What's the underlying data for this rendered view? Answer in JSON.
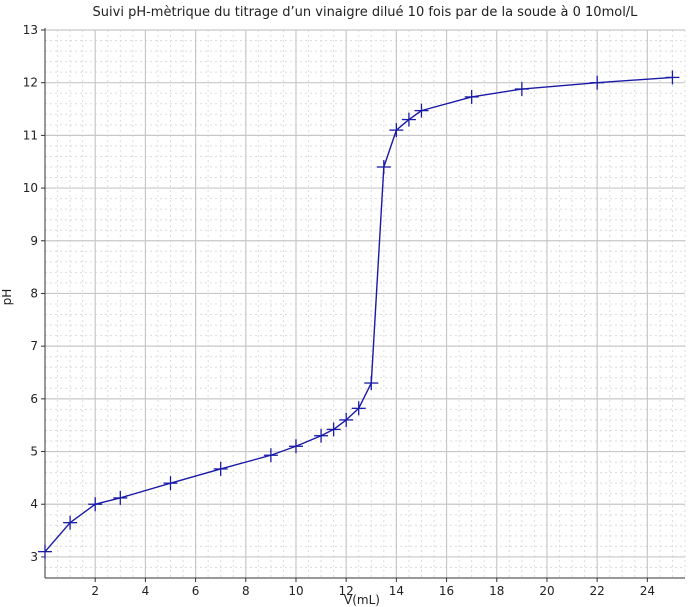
{
  "chart_data": {
    "type": "line",
    "title": "Suivi pH-mètrique du titrage d’un vinaigre dilué 10 fois par de la soude à 0 10mol/L",
    "xlabel": "V(mL)",
    "ylabel": "pH",
    "xlim": [
      0,
      25.5
    ],
    "ylim": [
      2.6,
      13
    ],
    "xticks": [
      2,
      4,
      6,
      8,
      10,
      12,
      14,
      16,
      18,
      20,
      22,
      24
    ],
    "yticks": [
      3,
      4,
      5,
      6,
      7,
      8,
      9,
      10,
      11,
      12,
      13
    ],
    "grid": true,
    "marker": "plus",
    "colors": {
      "line": "#1a1aa8",
      "grid_major": "#c8c8c8",
      "grid_minor": "#dcdcdc",
      "axis": "#333333"
    },
    "series": [
      {
        "x": [
          0,
          1,
          2,
          3,
          5,
          7,
          9,
          10,
          11,
          11.5,
          12,
          12.5,
          13,
          13.5,
          14,
          14.5,
          15,
          17,
          19,
          22,
          25
        ],
        "y": [
          3.1,
          3.65,
          4.0,
          4.12,
          4.4,
          4.67,
          4.93,
          5.1,
          5.3,
          5.42,
          5.6,
          5.82,
          6.3,
          10.4,
          11.1,
          11.3,
          11.47,
          11.73,
          11.88,
          12.0,
          12.1
        ]
      }
    ]
  }
}
